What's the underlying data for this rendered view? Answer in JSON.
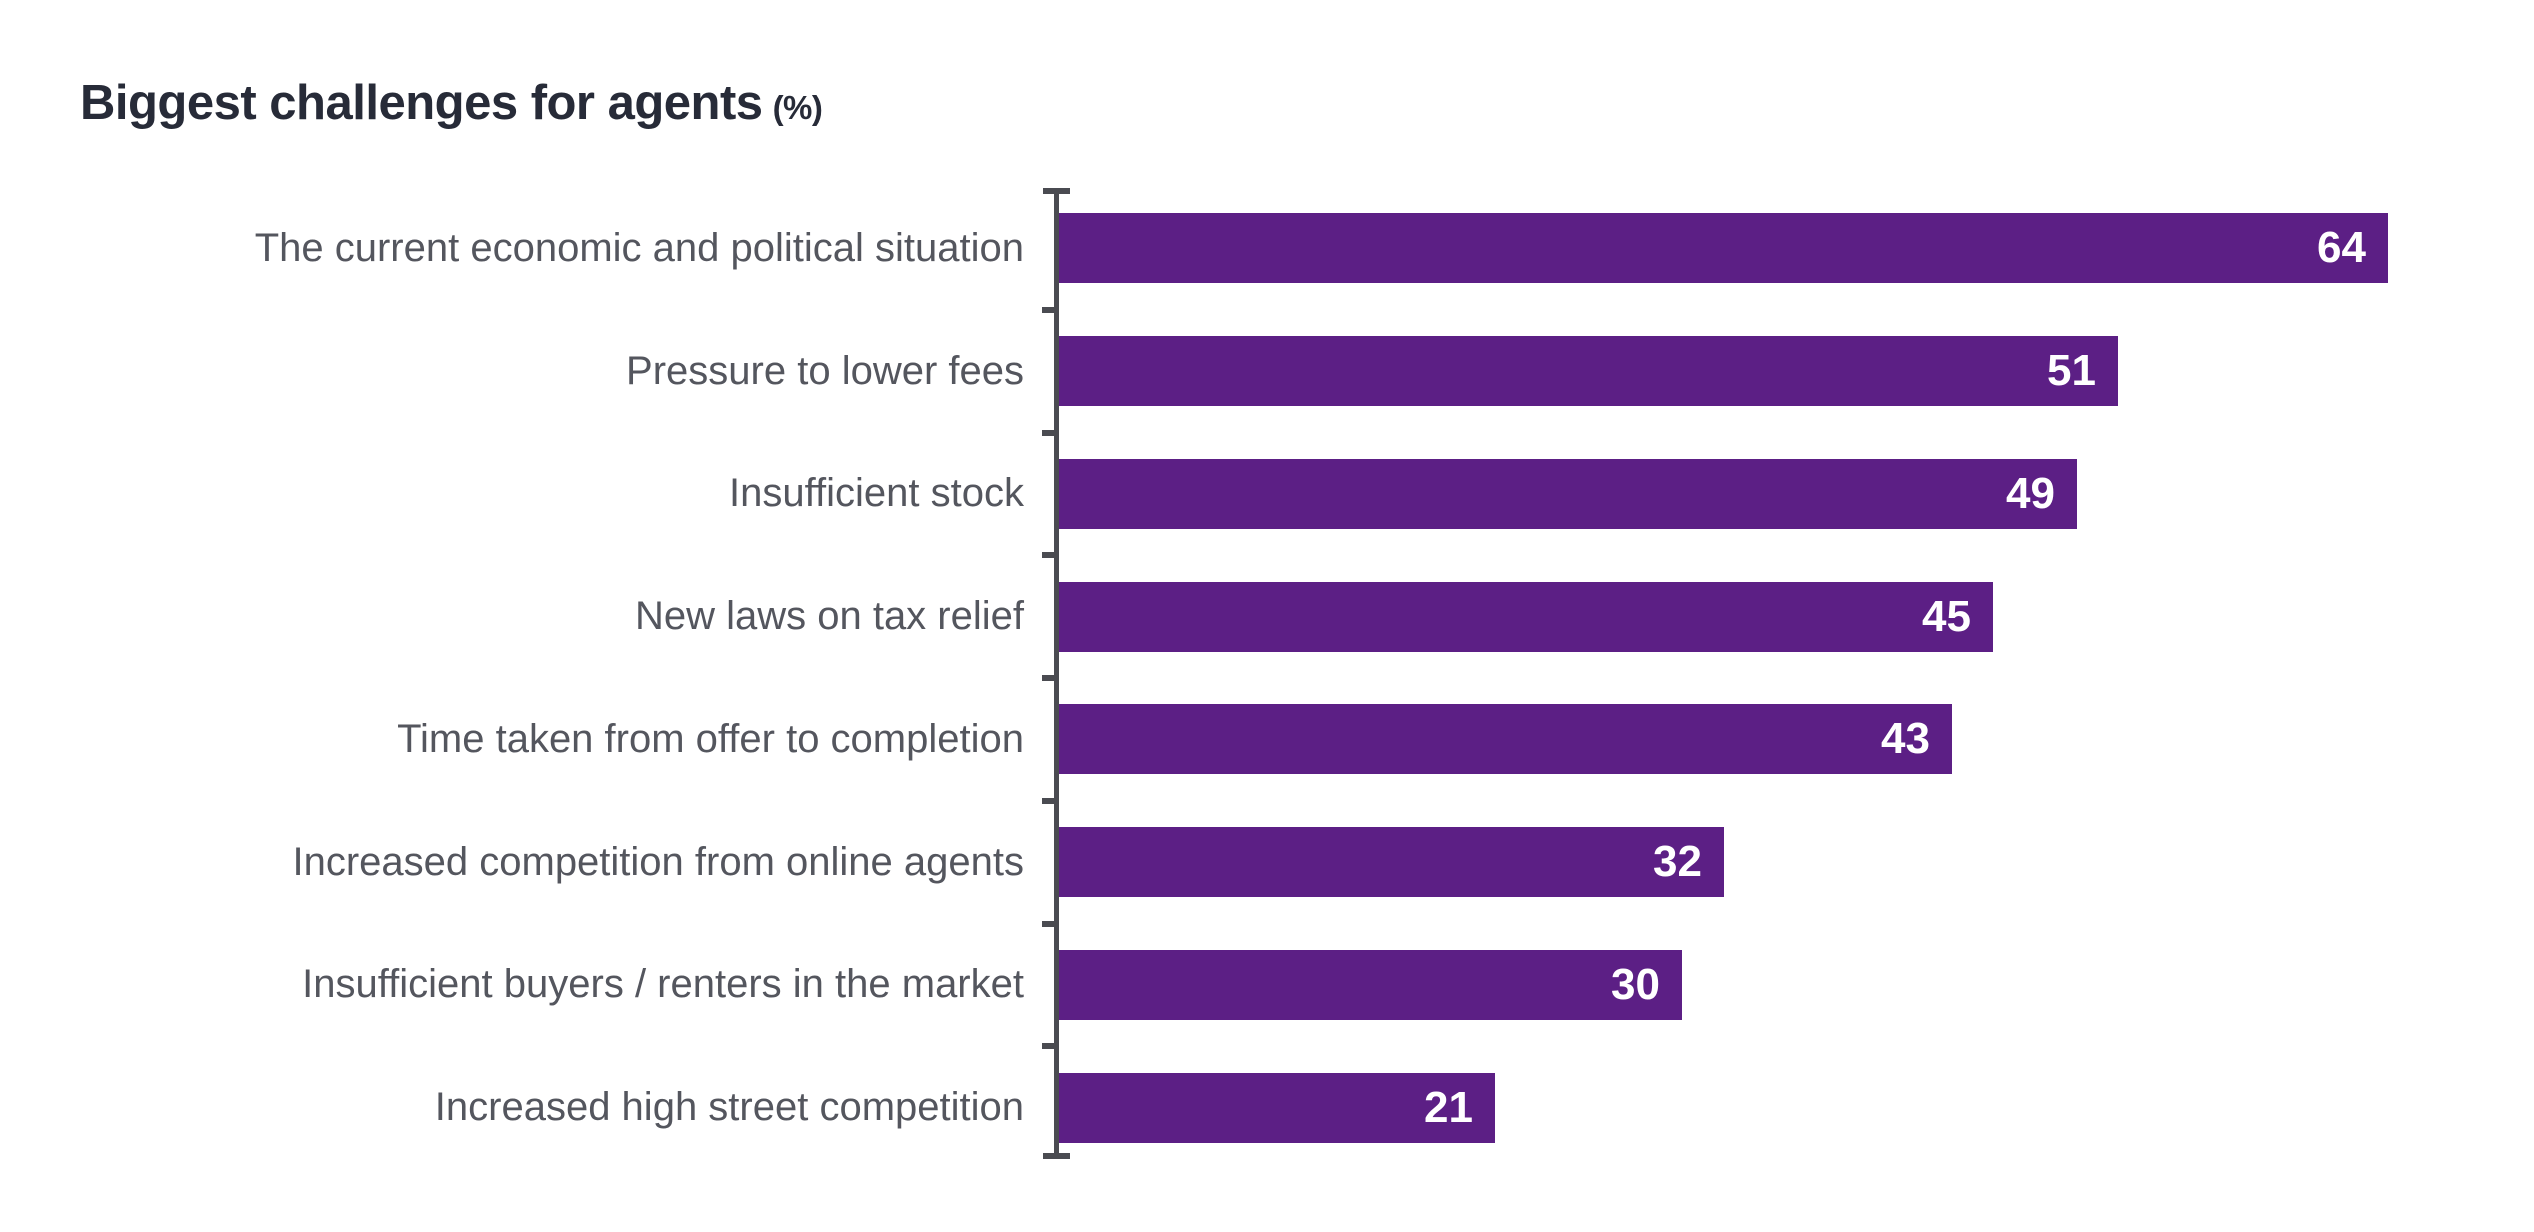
{
  "title": {
    "main": "Biggest challenges for agents",
    "unit": "(%)"
  },
  "colors": {
    "bar": "#5C1F85",
    "title_text": "#272B38",
    "category_label": "#54565E",
    "axis": "#4A4B51",
    "value_text": "#FFFFFF",
    "background": "#FFFFFF"
  },
  "chart_data": {
    "type": "bar",
    "orientation": "horizontal",
    "title": "Biggest challenges for agents (%)",
    "categories": [
      "The current economic and political situation",
      "Pressure to lower fees",
      "Insufficient stock",
      "New laws on tax relief",
      "Time taken from offer to completion",
      "Increased competition from online agents",
      "Insufficient buyers / renters in the market",
      "Increased high street competition"
    ],
    "values": [
      64,
      51,
      49,
      45,
      43,
      32,
      30,
      21
    ],
    "xlabel": "",
    "ylabel": "",
    "xlim": [
      0,
      64
    ],
    "unit": "%",
    "grid": false,
    "legend": false,
    "value_labels": "inside-end"
  }
}
